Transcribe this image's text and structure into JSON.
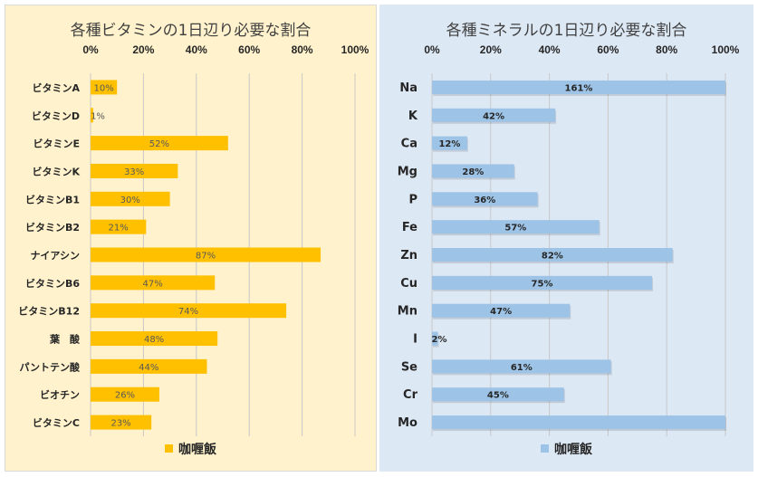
{
  "chart_data": [
    {
      "type": "bar",
      "orientation": "horizontal",
      "title": "各種ビタミンの1日辺り必要な割合",
      "xlabel": "",
      "ylabel": "",
      "xlim": [
        0,
        100
      ],
      "xticks": [
        "0%",
        "20%",
        "40%",
        "60%",
        "80%",
        "100%"
      ],
      "grid": true,
      "legend_position": "bottom",
      "color": "#ffc000",
      "background": "#fff2cc",
      "categories": [
        "ビタミンA",
        "ビタミンD",
        "ビタミンE",
        "ビタミンK",
        "ビタミンB1",
        "ビタミンB2",
        "ナイアシン",
        "ビタミンB6",
        "ビタミンB12",
        "葉　酸",
        "パントテン酸",
        "ビオチン",
        "ビタミンC"
      ],
      "series": [
        {
          "name": "咖喱飯",
          "values": [
            10,
            1,
            52,
            33,
            30,
            21,
            87,
            47,
            74,
            48,
            44,
            26,
            23
          ],
          "data_labels": [
            "10%",
            "1%",
            "52%",
            "33%",
            "30%",
            "21%",
            "87%",
            "47%",
            "74%",
            "48%",
            "44%",
            "26%",
            "23%"
          ]
        }
      ]
    },
    {
      "type": "bar",
      "orientation": "horizontal",
      "title": "各種ミネラルの1日辺り必要な割合",
      "xlabel": "",
      "ylabel": "",
      "xlim": [
        0,
        100
      ],
      "xticks": [
        "0%",
        "20%",
        "40%",
        "60%",
        "80%",
        "100%"
      ],
      "grid": true,
      "legend_position": "bottom",
      "color": "#9dc3e6",
      "background": "#dde8f5",
      "categories": [
        "Na",
        "K",
        "Ca",
        "Mg",
        "P",
        "Fe",
        "Zn",
        "Cu",
        "Mn",
        "I",
        "Se",
        "Cr",
        "Mo"
      ],
      "series": [
        {
          "name": "咖喱飯",
          "values": [
            161,
            42,
            12,
            28,
            36,
            57,
            82,
            75,
            47,
            2,
            61,
            45,
            100
          ],
          "data_labels": [
            "161%",
            "42%",
            "12%",
            "28%",
            "36%",
            "57%",
            "82%",
            "75%",
            "47%",
            "2%",
            "61%",
            "45%",
            ""
          ]
        }
      ]
    }
  ]
}
